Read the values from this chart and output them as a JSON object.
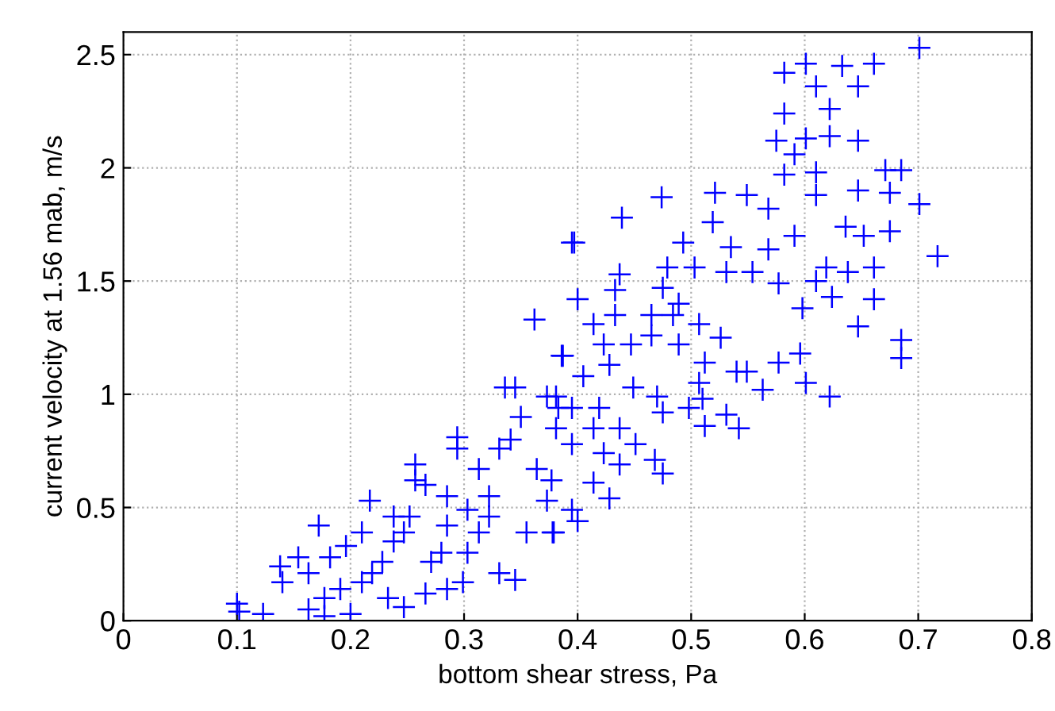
{
  "chart_data": {
    "type": "scatter",
    "xlabel": "bottom shear stress, Pa",
    "ylabel": "current velocity at 1.56 mab, m/s",
    "xlim": [
      0,
      0.8
    ],
    "ylim": [
      0,
      2.6
    ],
    "xticks": [
      0,
      0.1,
      0.2,
      0.3,
      0.4,
      0.5,
      0.6,
      0.7,
      0.8
    ],
    "yticks": [
      0,
      0.5,
      1,
      1.5,
      2,
      2.5
    ],
    "grid": true,
    "marker": "cross",
    "series": [
      {
        "color": "#0000ff",
        "x": [
          0.102,
          0.1,
          0.123,
          0.172,
          0.217,
          0.257,
          0.294,
          0.294,
          0.257,
          0.266,
          0.154,
          0.14,
          0.138,
          0.163,
          0.182,
          0.196,
          0.177,
          0.2,
          0.177,
          0.163,
          0.191,
          0.21,
          0.219,
          0.228,
          0.238,
          0.247,
          0.252,
          0.233,
          0.247,
          0.266,
          0.285,
          0.299,
          0.271,
          0.28,
          0.285,
          0.303,
          0.313,
          0.322,
          0.331,
          0.345,
          0.313,
          0.331,
          0.341,
          0.35,
          0.336,
          0.345,
          0.362,
          0.397,
          0.387,
          0.373,
          0.383,
          0.378,
          0.355,
          0.364,
          0.373,
          0.322,
          0.303,
          0.285,
          0.238,
          0.21,
          0.701,
          0.582,
          0.601,
          0.633,
          0.661,
          0.61,
          0.647,
          0.622,
          0.582,
          0.575,
          0.601,
          0.622,
          0.647,
          0.591,
          0.582,
          0.61,
          0.671,
          0.685,
          0.701,
          0.717,
          0.675,
          0.647,
          0.61,
          0.568,
          0.549,
          0.521,
          0.519,
          0.474,
          0.439,
          0.395,
          0.493,
          0.535,
          0.568,
          0.591,
          0.636,
          0.652,
          0.675,
          0.479,
          0.503,
          0.531,
          0.554,
          0.577,
          0.61,
          0.619,
          0.638,
          0.661,
          0.661,
          0.624,
          0.598,
          0.647,
          0.685,
          0.685,
          0.622,
          0.596,
          0.601,
          0.577,
          0.563,
          0.549,
          0.54,
          0.507,
          0.51,
          0.498,
          0.512,
          0.531,
          0.542,
          0.512,
          0.526,
          0.507,
          0.489,
          0.475,
          0.437,
          0.433,
          0.4,
          0.414,
          0.433,
          0.465,
          0.484,
          0.423,
          0.447,
          0.465,
          0.489,
          0.386,
          0.405,
          0.428,
          0.449,
          0.47,
          0.475,
          0.468,
          0.475,
          0.428,
          0.414,
          0.437,
          0.4,
          0.379,
          0.395,
          0.377,
          0.381,
          0.395,
          0.414,
          0.437,
          0.381,
          0.395,
          0.419,
          0.451,
          0.423
        ],
        "values": [
          0.04,
          0.075,
          0.03,
          0.42,
          0.53,
          0.69,
          0.81,
          0.76,
          0.62,
          0.6,
          0.28,
          0.17,
          0.24,
          0.21,
          0.28,
          0.33,
          0.1,
          0.03,
          0.02,
          0.05,
          0.14,
          0.17,
          0.21,
          0.26,
          0.35,
          0.39,
          0.46,
          0.1,
          0.06,
          0.12,
          0.14,
          0.17,
          0.26,
          0.3,
          0.42,
          0.3,
          0.39,
          0.46,
          0.21,
          0.18,
          0.67,
          0.76,
          0.8,
          0.9,
          1.03,
          1.03,
          1.33,
          1.67,
          1.17,
          0.99,
          0.94,
          0.39,
          0.39,
          0.67,
          0.53,
          0.55,
          0.49,
          0.55,
          0.46,
          0.39,
          2.53,
          2.42,
          2.46,
          2.45,
          2.46,
          2.36,
          2.36,
          2.26,
          2.24,
          2.12,
          2.13,
          2.14,
          2.12,
          2.06,
          1.97,
          1.98,
          1.99,
          1.99,
          1.84,
          1.61,
          1.89,
          1.9,
          1.88,
          1.82,
          1.88,
          1.89,
          1.76,
          1.87,
          1.78,
          1.67,
          1.67,
          1.65,
          1.64,
          1.7,
          1.74,
          1.7,
          1.72,
          1.56,
          1.56,
          1.54,
          1.54,
          1.49,
          1.5,
          1.56,
          1.54,
          1.56,
          1.42,
          1.43,
          1.38,
          1.3,
          1.24,
          1.16,
          0.99,
          1.18,
          1.05,
          1.14,
          1.02,
          1.1,
          1.1,
          1.05,
          0.98,
          0.94,
          0.86,
          0.91,
          0.85,
          1.14,
          1.25,
          1.31,
          1.4,
          1.47,
          1.53,
          1.46,
          1.42,
          1.31,
          1.35,
          1.35,
          1.35,
          1.22,
          1.22,
          1.26,
          1.22,
          1.17,
          1.08,
          1.13,
          1.03,
          0.99,
          0.92,
          0.71,
          0.65,
          0.54,
          0.61,
          0.69,
          0.44,
          0.39,
          0.49,
          0.62,
          0.85,
          0.78,
          0.85,
          0.85,
          0.99,
          0.94,
          0.94,
          0.78,
          0.74
        ]
      }
    ]
  }
}
